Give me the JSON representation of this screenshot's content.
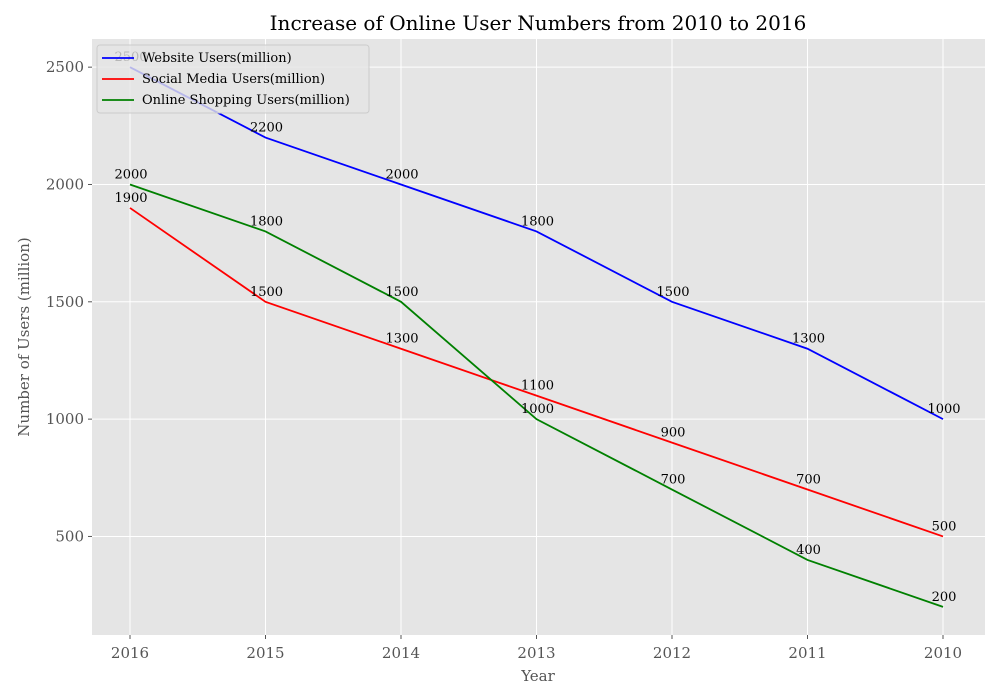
{
  "chart_data": {
    "type": "line",
    "title": "Increase of Online User Numbers from 2010 to 2016",
    "xlabel": "Year",
    "ylabel": "Number of Users (million)",
    "categories": [
      "2016",
      "2015",
      "2014",
      "2013",
      "2012",
      "2011",
      "2010"
    ],
    "yticks": [
      500,
      1000,
      1500,
      2000,
      2500
    ],
    "ylim": [
      80,
      2620
    ],
    "grid": true,
    "legend_position": "top-left",
    "background_color": "#e5e5e5",
    "series": [
      {
        "name": "Website Users(million)",
        "color": "#0000ff",
        "values": [
          2500,
          2200,
          2000,
          1800,
          1500,
          1300,
          1000
        ]
      },
      {
        "name": "Social Media Users(million)",
        "color": "#ff0000",
        "values": [
          1900,
          1500,
          1300,
          1100,
          900,
          700,
          500
        ]
      },
      {
        "name": "Online Shopping Users(million)",
        "color": "#008000",
        "values": [
          2000,
          1800,
          1500,
          1000,
          700,
          400,
          200
        ]
      }
    ]
  }
}
